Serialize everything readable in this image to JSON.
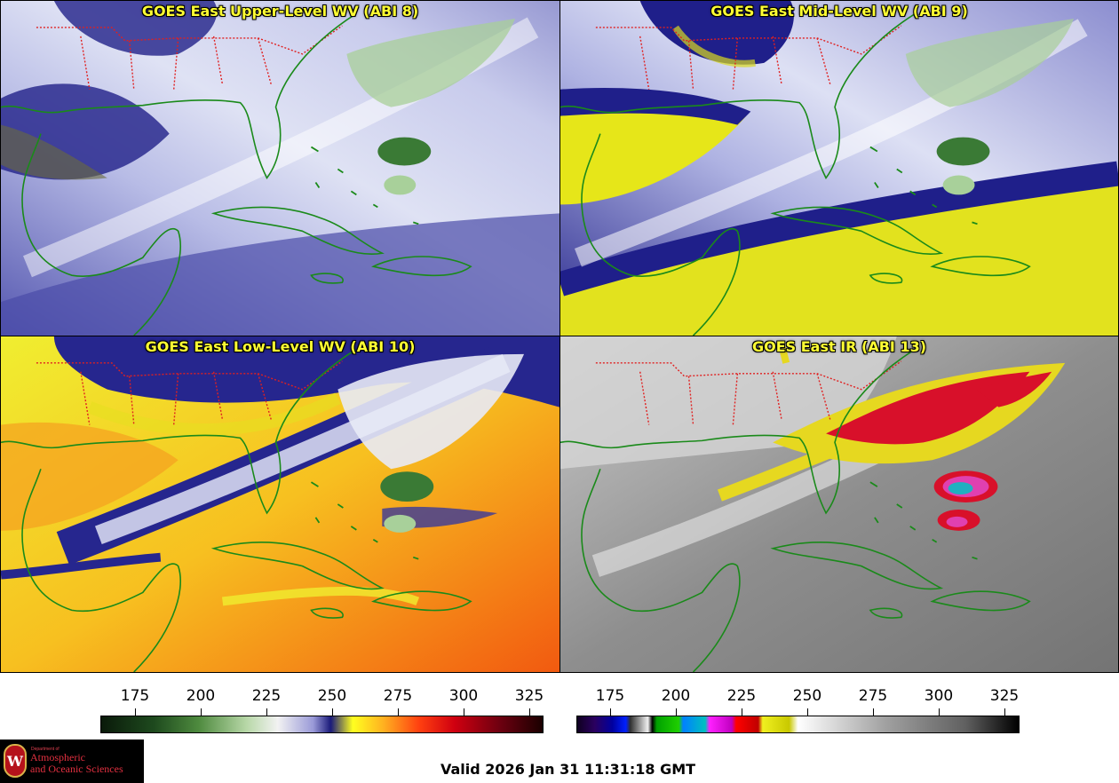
{
  "panels": [
    {
      "id": "upper",
      "title": "GOES East Upper-Level WV (ABI 8)",
      "palette": "wv"
    },
    {
      "id": "mid",
      "title": "GOES East Mid-Level WV (ABI 9)",
      "palette": "wv"
    },
    {
      "id": "low",
      "title": "GOES East Low-Level WV (ABI 10)",
      "palette": "wv"
    },
    {
      "id": "ir",
      "title": "GOES East IR (ABI 13)",
      "palette": "ir"
    }
  ],
  "colorbars": [
    {
      "id": "wv",
      "ticks": [
        "175",
        "200",
        "225",
        "250",
        "275",
        "300",
        "325"
      ]
    },
    {
      "id": "ir",
      "ticks": [
        "175",
        "200",
        "225",
        "250",
        "275",
        "300",
        "325"
      ]
    }
  ],
  "colors": {
    "coastline": "#1a8a1a",
    "state_border": "#e02020",
    "title_text": "#ffff33"
  },
  "logo": {
    "seal_letter": "W",
    "dept": "Department of",
    "line1": "Atmospheric",
    "line2": "and Oceanic Sciences"
  },
  "valid_time": "Valid 2026 Jan 31 11:31:18 GMT"
}
